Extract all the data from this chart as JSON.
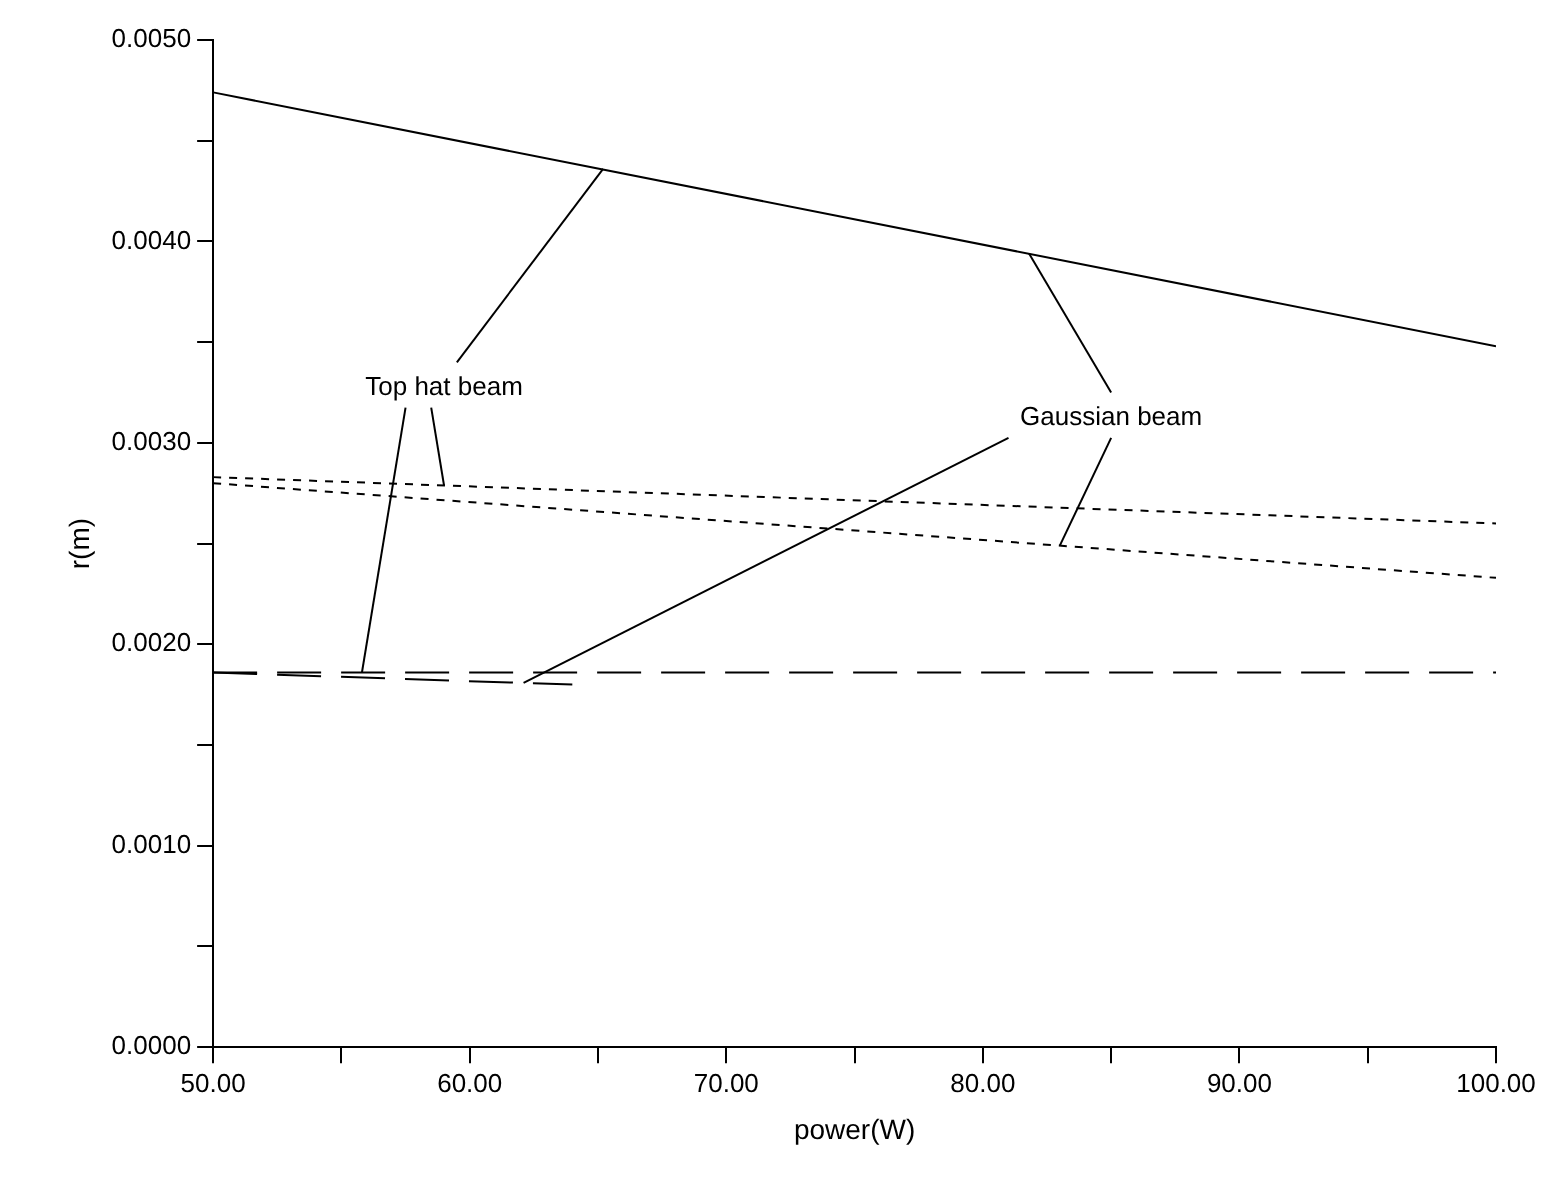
{
  "chart_data": {
    "type": "line",
    "xlabel": "power(W)",
    "ylabel": "r(m)",
    "xlim": [
      50,
      100
    ],
    "ylim": [
      0,
      0.005
    ],
    "xticks": [
      {
        "value": 50,
        "label": "50.00"
      },
      {
        "value": 55,
        "label": null
      },
      {
        "value": 60,
        "label": "60.00"
      },
      {
        "value": 65,
        "label": null
      },
      {
        "value": 70,
        "label": "70.00"
      },
      {
        "value": 75,
        "label": null
      },
      {
        "value": 80,
        "label": "80.00"
      },
      {
        "value": 85,
        "label": null
      },
      {
        "value": 90,
        "label": "90.00"
      },
      {
        "value": 95,
        "label": null
      },
      {
        "value": 100,
        "label": "100.00"
      }
    ],
    "yticks": [
      {
        "value": 0,
        "label": "0.0000"
      },
      {
        "value": 0.0005,
        "label": null
      },
      {
        "value": 0.001,
        "label": "0.0010"
      },
      {
        "value": 0.0015,
        "label": null
      },
      {
        "value": 0.002,
        "label": "0.0020"
      },
      {
        "value": 0.0025,
        "label": null
      },
      {
        "value": 0.003,
        "label": "0.0030"
      },
      {
        "value": 0.0035,
        "label": null
      },
      {
        "value": 0.004,
        "label": "0.0040"
      },
      {
        "value": 0.0045,
        "label": null
      },
      {
        "value": 0.005,
        "label": "0.0050"
      }
    ],
    "grid": false,
    "legend": false,
    "marker": "none",
    "series": [
      {
        "color": "#000000",
        "line_style": "solid",
        "x": [
          50,
          100
        ],
        "values": [
          0.00474,
          0.00348
        ]
      },
      {
        "color": "#000000",
        "line_style": "dotted",
        "x": [
          50,
          100
        ],
        "values": [
          0.00283,
          0.0026
        ]
      },
      {
        "color": "#000000",
        "line_style": "dotted",
        "x": [
          50,
          100
        ],
        "values": [
          0.0028,
          0.00233
        ]
      },
      {
        "color": "#000000",
        "line_style": "dashed",
        "x": [
          50,
          100
        ],
        "values": [
          0.00186,
          0.00186
        ]
      },
      {
        "color": "#000000",
        "line_style": "dashed",
        "x": [
          50,
          64
        ],
        "values": [
          0.00186,
          0.0018
        ]
      }
    ],
    "annotations": [
      {
        "text": "Top hat beam",
        "x": 65.2,
        "y": 0.00436
      },
      {
        "text": "Gaussian beam",
        "x": 81.8,
        "y": 0.00394
      }
    ]
  }
}
